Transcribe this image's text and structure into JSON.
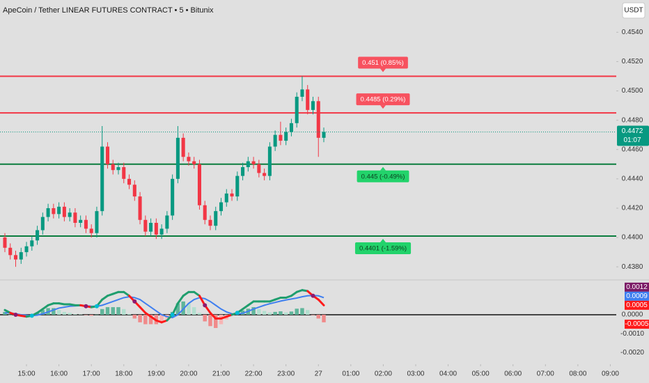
{
  "header": {
    "title": "ApeCoin / Tether LINEAR FUTURES CONTRACT • 5 • Bitunix",
    "currency": "USDT"
  },
  "chart_data": [
    {
      "type": "candlestick",
      "x": [
        860,
        870,
        880,
        890,
        900,
        910,
        920,
        930,
        940,
        950,
        960,
        970,
        980,
        990,
        1000,
        1010,
        1020,
        1030,
        1040,
        1050,
        1060,
        1070,
        1080,
        1090,
        1100,
        1110,
        1120,
        1130,
        1140,
        1150,
        1160,
        1170,
        1180,
        1190,
        1200,
        1210,
        1220,
        1230,
        1240,
        1250,
        1260,
        1270,
        1280,
        1290,
        1300,
        1310,
        1320,
        1330,
        1340,
        1350,
        1360,
        1370,
        1380,
        1390,
        1400,
        1410,
        1420,
        1430,
        1440,
        1450
      ],
      "open": [
        0.44,
        0.4393,
        0.4388,
        0.4385,
        0.439,
        0.4394,
        0.4398,
        0.4405,
        0.4414,
        0.442,
        0.4416,
        0.4421,
        0.4414,
        0.4417,
        0.441,
        0.4412,
        0.4406,
        0.4403,
        0.4418,
        0.4462,
        0.445,
        0.4446,
        0.4448,
        0.444,
        0.4436,
        0.4428,
        0.4412,
        0.4404,
        0.441,
        0.4402,
        0.4406,
        0.4415,
        0.444,
        0.4468,
        0.4455,
        0.4452,
        0.445,
        0.4422,
        0.4412,
        0.4408,
        0.4418,
        0.4424,
        0.443,
        0.4428,
        0.4442,
        0.4448,
        0.4452,
        0.445,
        0.4444,
        0.4442,
        0.4462,
        0.447,
        0.4466,
        0.4472,
        0.4478,
        0.4496,
        0.4501,
        0.4487,
        0.4493,
        0.4468
      ],
      "high": [
        0.4403,
        0.4396,
        0.4391,
        0.4393,
        0.4397,
        0.4401,
        0.4408,
        0.4417,
        0.4423,
        0.4423,
        0.4424,
        0.4424,
        0.442,
        0.442,
        0.4415,
        0.4415,
        0.4409,
        0.4421,
        0.4476,
        0.4465,
        0.4453,
        0.4451,
        0.4451,
        0.4443,
        0.4439,
        0.4431,
        0.4415,
        0.4413,
        0.4413,
        0.4409,
        0.4418,
        0.4443,
        0.4476,
        0.4471,
        0.4458,
        0.4455,
        0.4453,
        0.4425,
        0.4415,
        0.4421,
        0.4427,
        0.4433,
        0.4433,
        0.4445,
        0.4451,
        0.4455,
        0.4455,
        0.4453,
        0.4447,
        0.4465,
        0.4473,
        0.4479,
        0.4475,
        0.4481,
        0.4499,
        0.451,
        0.4504,
        0.4496,
        0.4496,
        0.4475
      ],
      "low": [
        0.439,
        0.4385,
        0.438,
        0.4382,
        0.4387,
        0.4391,
        0.4395,
        0.4402,
        0.4411,
        0.4413,
        0.4413,
        0.4411,
        0.4411,
        0.4407,
        0.4407,
        0.4403,
        0.44,
        0.44,
        0.4415,
        0.4447,
        0.4443,
        0.4443,
        0.4437,
        0.4433,
        0.4425,
        0.4409,
        0.4401,
        0.4401,
        0.4399,
        0.4399,
        0.4403,
        0.4412,
        0.4437,
        0.4452,
        0.4449,
        0.4447,
        0.4419,
        0.4409,
        0.4405,
        0.4405,
        0.4415,
        0.4421,
        0.4425,
        0.4425,
        0.4439,
        0.4445,
        0.4447,
        0.4441,
        0.4439,
        0.4439,
        0.4459,
        0.4463,
        0.4463,
        0.4469,
        0.4475,
        0.4493,
        0.4484,
        0.4484,
        0.4455,
        0.4465
      ],
      "close": [
        0.4393,
        0.4388,
        0.4385,
        0.439,
        0.4394,
        0.4398,
        0.4405,
        0.4414,
        0.442,
        0.4416,
        0.4421,
        0.4414,
        0.4417,
        0.441,
        0.4412,
        0.4406,
        0.4403,
        0.4418,
        0.4462,
        0.445,
        0.4446,
        0.4448,
        0.444,
        0.4436,
        0.4428,
        0.4412,
        0.4404,
        0.441,
        0.4402,
        0.4406,
        0.4415,
        0.444,
        0.4468,
        0.4455,
        0.4452,
        0.445,
        0.4422,
        0.4412,
        0.4408,
        0.4418,
        0.4424,
        0.443,
        0.4428,
        0.4442,
        0.4448,
        0.4452,
        0.445,
        0.4444,
        0.4442,
        0.4462,
        0.447,
        0.4466,
        0.4472,
        0.4478,
        0.4496,
        0.4501,
        0.4487,
        0.4493,
        0.4468,
        0.4472
      ],
      "up_color": "#089981",
      "down_color": "#f23645",
      "xlim": [
        851,
        1991
      ],
      "ylim": [
        0.4372,
        0.4562
      ],
      "yticks": [
        {
          "value": 0.438,
          "label": "0.4380"
        },
        {
          "value": 0.44,
          "label": "0.4400"
        },
        {
          "value": 0.442,
          "label": "0.4420"
        },
        {
          "value": 0.444,
          "label": "0.4440"
        },
        {
          "value": 0.446,
          "label": "0.4460"
        },
        {
          "value": 0.448,
          "label": "0.4480"
        },
        {
          "value": 0.45,
          "label": "0.4500"
        },
        {
          "value": 0.452,
          "label": "0.4520"
        },
        {
          "value": 0.454,
          "label": "0.4540"
        }
      ],
      "levels": [
        {
          "value": 0.451,
          "label": "0.451 (0.85%)",
          "color": "#f23645",
          "label_color": "#f7525f",
          "side": "above"
        },
        {
          "value": 0.4485,
          "label": "0.4485 (0.29%)",
          "color": "#f23645",
          "label_color": "#f7525f",
          "side": "above"
        },
        {
          "value": 0.445,
          "label": "0.445 (-0.49%)",
          "color": "#0b7d3e",
          "label_color": "#22d36b",
          "side": "below"
        },
        {
          "value": 0.4401,
          "label": "0.4401 (-1.59%)",
          "color": "#0b7d3e",
          "label_color": "#22d36b",
          "side": "below"
        }
      ],
      "last_price": {
        "value": 0.4472,
        "label": "0.4472",
        "countdown": "01:07",
        "color": "#089981"
      }
    },
    {
      "type": "macd",
      "xlim": [
        851,
        1991
      ],
      "ylim": [
        -0.0025,
        0.0018
      ],
      "yticks": [
        {
          "value": 0,
          "label": "0.0000"
        },
        {
          "value": -0.001,
          "label": "-0.0010"
        },
        {
          "value": -0.002,
          "label": "-0.0020"
        }
      ],
      "zero_line": true,
      "macd": [
        0.00025,
        0.0001,
        0,
        -5e-05,
        -0.0001,
        -5e-05,
        0.0001,
        0.0003,
        0.0005,
        0.0006,
        0.0006,
        0.00055,
        0.00055,
        0.0005,
        0.0005,
        0.00045,
        0.0004,
        0.00045,
        0.0008,
        0.001,
        0.0011,
        0.0012,
        0.0012,
        0.001,
        0.0007,
        0.0004,
        0.0001,
        -0.0001,
        -0.0003,
        -0.0004,
        -0.0003,
        0,
        0.0006,
        0.001,
        0.0012,
        0.0012,
        0.001,
        0.0005,
        0.0001,
        -0.0002,
        -0.0002,
        -0.0001,
        0,
        0.0001,
        0.0003,
        0.0005,
        0.0007,
        0.0007,
        0.0007,
        0.0007,
        0.0008,
        0.0009,
        0.0009,
        0.001,
        0.0012,
        0.0013,
        0.00125,
        0.001,
        0.0008,
        0.0005
      ],
      "signal": [
        0.0001,
        0.0001,
        5e-05,
        0,
        -3e-05,
        -5e-05,
        -2e-05,
        5e-05,
        0.00015,
        0.00025,
        0.00035,
        0.0004,
        0.00045,
        0.00047,
        0.00048,
        0.00047,
        0.00045,
        0.00044,
        0.0005,
        0.0006,
        0.0007,
        0.0008,
        0.0009,
        0.00095,
        0.0009,
        0.0008,
        0.0006,
        0.0004,
        0.0002,
        0,
        -0.0001,
        -0.00015,
        0,
        0.0003,
        0.0006,
        0.0008,
        0.0009,
        0.00085,
        0.0007,
        0.0005,
        0.0003,
        0.00015,
        5e-05,
        3e-05,
        8e-05,
        0.00018,
        0.0003,
        0.0004,
        0.0005,
        0.00058,
        0.00065,
        0.00072,
        0.00078,
        0.00083,
        0.00088,
        0.00095,
        0.001,
        0.00102,
        0.001,
        0.0009
      ],
      "histogram": [
        0.00015,
        0,
        -5e-05,
        -5e-05,
        -7e-05,
        0,
        0.00012,
        0.00025,
        0.00035,
        0.00035,
        0.00025,
        0.00015,
        0.0001,
        3e-05,
        2e-05,
        -2e-05,
        -5e-05,
        1e-05,
        0.0003,
        0.0004,
        0.0004,
        0.0004,
        0.0003,
        5e-05,
        -0.0002,
        -0.0004,
        -0.0005,
        -0.0005,
        -0.0005,
        -0.0004,
        -0.0002,
        0.00015,
        0.0006,
        0.0007,
        0.0006,
        0.0004,
        0.0001,
        -0.00035,
        -0.0006,
        -0.0007,
        -0.0005,
        -0.00025,
        -5e-05,
        7e-05,
        0.00022,
        0.00032,
        0.0004,
        0.0003,
        0.0002,
        0.00012,
        0.00015,
        0.00018,
        0.00012,
        0.00017,
        0.00032,
        0.00035,
        0.00025,
        -2e-05,
        -0.0002,
        -0.0004
      ],
      "macd_colors": [
        "#1f9e6e",
        "#ff1a1a"
      ],
      "signal_color": "#3f7ff0",
      "histogram_colors": [
        "#5fb59a",
        "#b2dfcf",
        "#f08a8a",
        "#f7b4b4"
      ],
      "cross_colors": [
        "#00bcd4",
        "#8e1a6e"
      ],
      "pane_labels": [
        {
          "value": 0.0012,
          "label": "0.0012",
          "color": "#7b1a66"
        },
        {
          "value": 0.0009,
          "label": "0.0009",
          "color": "#3f7ff0"
        },
        {
          "value": 0.0005,
          "label": "0.0005",
          "color": "#ff1a1a"
        },
        {
          "value": -0.0005,
          "label": "-0.0005",
          "color": "#ff1a1a"
        }
      ],
      "xticks": [
        {
          "value": 900,
          "label": "15:00"
        },
        {
          "value": 960,
          "label": "16:00"
        },
        {
          "value": 1020,
          "label": "17:00"
        },
        {
          "value": 1080,
          "label": "18:00"
        },
        {
          "value": 1140,
          "label": "19:00"
        },
        {
          "value": 1200,
          "label": "20:00"
        },
        {
          "value": 1260,
          "label": "21:00"
        },
        {
          "value": 1320,
          "label": "22:00"
        },
        {
          "value": 1380,
          "label": "23:00"
        },
        {
          "value": 1440,
          "label": "27"
        },
        {
          "value": 1500,
          "label": "01:00"
        },
        {
          "value": 1560,
          "label": "02:00"
        },
        {
          "value": 1620,
          "label": "03:00"
        },
        {
          "value": 1680,
          "label": "04:00"
        },
        {
          "value": 1740,
          "label": "05:00"
        },
        {
          "value": 1800,
          "label": "06:00"
        },
        {
          "value": 1860,
          "label": "07:00"
        },
        {
          "value": 1920,
          "label": "08:00"
        },
        {
          "value": 1980,
          "label": "09:00"
        }
      ]
    }
  ]
}
